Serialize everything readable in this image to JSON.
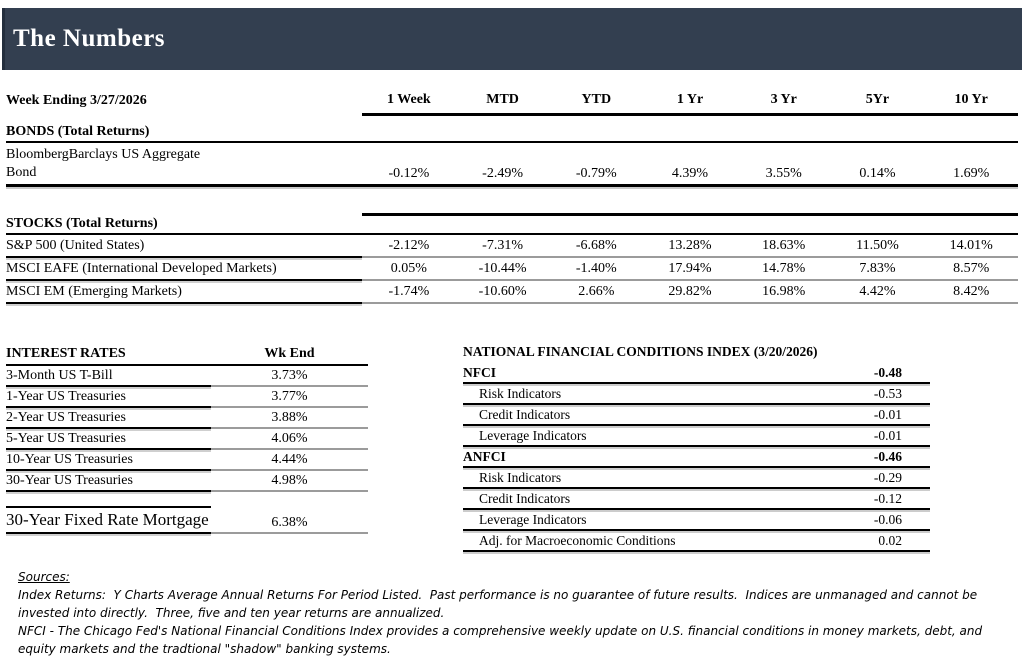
{
  "title_bar": {
    "title": "The Numbers",
    "bg_color": "#333F50",
    "text_color": "#FFFFFF"
  },
  "returns": {
    "header_label": "Week Ending 3/27/2026",
    "columns": [
      "1 Week",
      "MTD",
      "YTD",
      "1 Yr",
      "3 Yr",
      "5Yr",
      "10 Yr"
    ],
    "bonds_heading": "BONDS (Total Returns)",
    "bond_row": {
      "label_line1": "BloombergBarclays US Aggregate",
      "label_line2": "Bond",
      "values": [
        "-0.12%",
        "-2.49%",
        "-0.79%",
        "4.39%",
        "3.55%",
        "0.14%",
        "1.69%"
      ]
    },
    "stocks_heading": "STOCKS (Total Returns)",
    "stock_rows": [
      {
        "label": "S&P 500 (United States)",
        "values": [
          "-2.12%",
          "-7.31%",
          "-6.68%",
          "13.28%",
          "18.63%",
          "11.50%",
          "14.01%"
        ]
      },
      {
        "label": "MSCI EAFE (International Developed Markets)",
        "values": [
          "0.05%",
          "-10.44%",
          "-1.40%",
          "17.94%",
          "14.78%",
          "7.83%",
          "8.57%"
        ]
      },
      {
        "label": "MSCI EM (Emerging Markets)",
        "values": [
          "-1.74%",
          "-10.60%",
          "2.66%",
          "29.82%",
          "16.98%",
          "4.42%",
          "8.42%"
        ]
      }
    ]
  },
  "interest_rates": {
    "heading": "INTEREST RATES",
    "value_header": "Wk End",
    "rows": [
      {
        "label": "3-Month US T-Bill",
        "value": "3.73%"
      },
      {
        "label": "1-Year US Treasuries",
        "value": "3.77%"
      },
      {
        "label": "2-Year US Treasuries",
        "value": "3.88%"
      },
      {
        "label": "5-Year US Treasuries",
        "value": "4.06%"
      },
      {
        "label": "10-Year US Treasuries",
        "value": "4.44%"
      },
      {
        "label": "30-Year US Treasuries",
        "value": "4.98%"
      }
    ],
    "mortgage_row": {
      "label": "30-Year Fixed Rate Mortgage",
      "value": "6.38%"
    }
  },
  "nfci": {
    "heading": "NATIONAL FINANCIAL CONDITIONS INDEX (3/20/2026)",
    "rows": [
      {
        "label": "NFCI",
        "value": "-0.48"
      },
      {
        "label": "Risk Indicators",
        "value": "-0.53"
      },
      {
        "label": "Credit Indicators",
        "value": "-0.01"
      },
      {
        "label": "Leverage Indicators",
        "value": "-0.01"
      },
      {
        "label": "ANFCI",
        "value": "-0.46"
      },
      {
        "label": "Risk Indicators",
        "value": "-0.29"
      },
      {
        "label": "Credit Indicators",
        "value": "-0.12"
      },
      {
        "label": "Leverage Indicators",
        "value": "-0.06"
      },
      {
        "label": "Adj. for Macroeconomic Conditions",
        "value": "0.02"
      }
    ]
  },
  "sources": {
    "heading": "Sources:",
    "paragraph1": "Index Returns:  Y Charts Average Annual Returns For Period Listed.  Past performance is no guarantee of future results.  Indices are unmanaged and cannot be invested into directly.  Three, five and ten year returns are annualized.",
    "paragraph2": "NFCI - The Chicago Fed's National Financial Conditions Index provides a comprehensive weekly update on U.S. financial conditions in money markets, debt, and equity markets and the tradtional \"shadow\" banking systems."
  }
}
